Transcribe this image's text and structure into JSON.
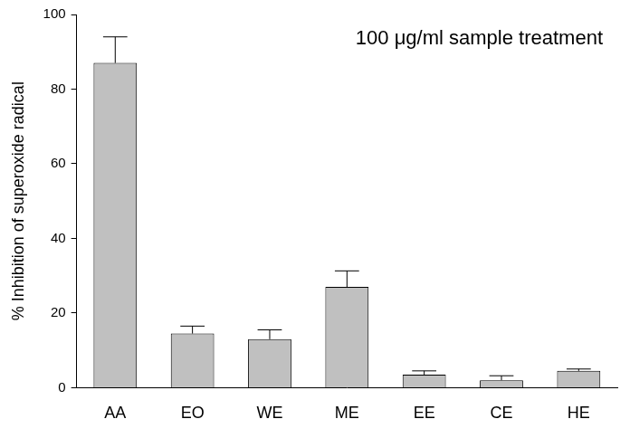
{
  "chart_data": {
    "type": "bar",
    "annotation": "100 μg/ml sample treatment",
    "y_label": "% Inhibition of superoxide radical",
    "categories": [
      "AA",
      "EO",
      "WE",
      "ME",
      "EE",
      "CE",
      "HE"
    ],
    "values": [
      87,
      14.5,
      13,
      27,
      3.5,
      2,
      4.5
    ],
    "errors": [
      7,
      2,
      2.5,
      4.3,
      1,
      1.2,
      0.5
    ],
    "color": "#c0c0c0",
    "ylim": [
      0,
      100
    ],
    "yticks": [
      0,
      20,
      40,
      60,
      80,
      100
    ],
    "grid": false
  }
}
